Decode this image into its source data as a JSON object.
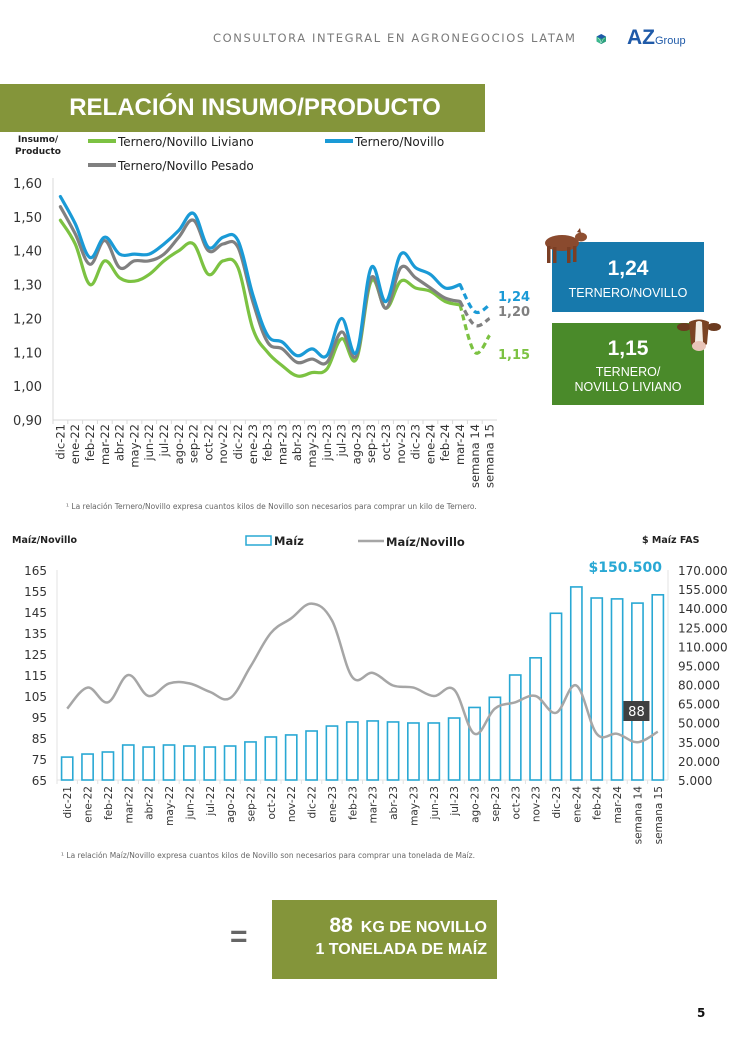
{
  "header": {
    "tagline": "CONSULTORA INTEGRAL EN AGRONEGOCIOS LATAM",
    "logo_main": "AZ",
    "logo_sub": "Group",
    "logo_icon": "hexagon-leaf-logo-icon"
  },
  "title": "RELACIÓN INSUMO/PRODUCTO",
  "colors": {
    "title_banner": "#84953a",
    "ternero_novillo": "#1a9ad6",
    "ternero_novillo_pesado": "#808080",
    "ternero_novillo_liviano": "#7cc242",
    "callout_blue": "#1779ac",
    "callout_green": "#4a8a2a",
    "bar_outline": "#29a8d4",
    "maiz_line": "#a6a6a6",
    "price_label": "#29a8d4"
  },
  "callouts": {
    "ternero_novillo": {
      "value": "1,24",
      "label": "TERNERO/NOVILLO",
      "icon": "calf-icon"
    },
    "ternero_novillo_liviano": {
      "value": "1,15",
      "label_line1": "TERNERO/",
      "label_line2": "NOVILLO LIVIANO",
      "icon": "cow-head-icon"
    }
  },
  "summary": {
    "equals_sign": "=",
    "value": "88",
    "line1_text": "KG DE NOVILLO",
    "line2_text": "1 TONELADA DE MAÍZ"
  },
  "page_number": "5",
  "chart_data": [
    {
      "type": "line",
      "title": "RELACIÓN INSUMO/PRODUCTO",
      "ylabel": "Insumo/ Producto",
      "ylabel_line1": "Insumo/",
      "ylabel_line2": "Producto",
      "xlabel": "",
      "ylim": [
        0.9,
        1.6
      ],
      "yticks": [
        "1,60",
        "1,50",
        "1,40",
        "1,30",
        "1,20",
        "1,10",
        "1,00",
        "0,90"
      ],
      "ytick_values": [
        1.6,
        1.5,
        1.4,
        1.3,
        1.2,
        1.1,
        1.0,
        0.9
      ],
      "grid": false,
      "legend_position": "top",
      "categories": [
        "dic-21",
        "ene-22",
        "feb-22",
        "mar-22",
        "abr-22",
        "may-22",
        "jun-22",
        "jul-22",
        "ago-22",
        "sep-22",
        "oct-22",
        "nov-22",
        "dic-22",
        "ene-23",
        "feb-23",
        "mar-23",
        "abr-23",
        "may-23",
        "jun-23",
        "jul-23",
        "ago-23",
        "sep-23",
        "oct-23",
        "nov-23",
        "dic-23",
        "ene-24",
        "feb-24",
        "mar-24",
        "semana 14",
        "semana 15"
      ],
      "dashed_from_index": 27,
      "series": [
        {
          "name": "Ternero/Novillo Liviano",
          "color_key": "ternero_novillo_liviano",
          "values": [
            1.49,
            1.42,
            1.3,
            1.37,
            1.32,
            1.31,
            1.33,
            1.37,
            1.4,
            1.42,
            1.33,
            1.37,
            1.35,
            1.17,
            1.1,
            1.06,
            1.03,
            1.04,
            1.05,
            1.14,
            1.08,
            1.31,
            1.23,
            1.31,
            1.29,
            1.28,
            1.25,
            1.24,
            1.1,
            1.15
          ],
          "end_label": "1,15"
        },
        {
          "name": "Ternero/Novillo",
          "color_key": "ternero_novillo",
          "values": [
            1.56,
            1.48,
            1.38,
            1.44,
            1.39,
            1.39,
            1.39,
            1.42,
            1.46,
            1.51,
            1.41,
            1.44,
            1.43,
            1.27,
            1.15,
            1.13,
            1.09,
            1.11,
            1.09,
            1.2,
            1.1,
            1.35,
            1.25,
            1.39,
            1.35,
            1.33,
            1.29,
            1.3,
            1.22,
            1.24
          ],
          "end_label": "1,24"
        },
        {
          "name": "Ternero/Novillo Pesado",
          "color_key": "ternero_novillo_pesado",
          "values": [
            1.53,
            1.45,
            1.36,
            1.43,
            1.35,
            1.37,
            1.37,
            1.39,
            1.44,
            1.49,
            1.4,
            1.42,
            1.41,
            1.25,
            1.13,
            1.11,
            1.07,
            1.08,
            1.07,
            1.16,
            1.09,
            1.32,
            1.23,
            1.35,
            1.32,
            1.29,
            1.26,
            1.25,
            1.18,
            1.2
          ],
          "end_label": "1,20"
        }
      ],
      "footnote": "¹ La relación Ternero/Novillo expresa cuantos kilos de Novillo son necesarios para comprar un kilo de Ternero."
    },
    {
      "type": "bar",
      "title": "",
      "ylabel": "Maíz/Novillo",
      "y2label": "$ Maíz FAS",
      "ylim": [
        65,
        165
      ],
      "y2lim": [
        5000,
        170000
      ],
      "yticks": [
        "165",
        "155",
        "145",
        "135",
        "125",
        "115",
        "105",
        "95",
        "85",
        "75",
        "65"
      ],
      "ytick_values": [
        165,
        155,
        145,
        135,
        125,
        115,
        105,
        95,
        85,
        75,
        65
      ],
      "y2ticks": [
        "170.000",
        "155.000",
        "140.000",
        "125.000",
        "110.000",
        "95.000",
        "80.000",
        "65.000",
        "50.000",
        "35.000",
        "20.000",
        "5.000"
      ],
      "y2tick_values": [
        170000,
        155000,
        140000,
        125000,
        110000,
        95000,
        80000,
        65000,
        50000,
        35000,
        20000,
        5000
      ],
      "grid": false,
      "legend_position": "top",
      "categories": [
        "dic-21",
        "ene-22",
        "feb-22",
        "mar-22",
        "abr-22",
        "may-22",
        "jun-22",
        "jul-22",
        "ago-22",
        "sep-22",
        "oct-22",
        "nov-22",
        "dic-22",
        "ene-23",
        "feb-23",
        "mar-23",
        "abr-23",
        "may-23",
        "jun-23",
        "jul-23",
        "ago-23",
        "sep-23",
        "oct-23",
        "nov-23",
        "dic-23",
        "ene-24",
        "feb-24",
        "mar-24",
        "semana 14",
        "semana 15"
      ],
      "series": [
        {
          "name": "Maíz",
          "kind": "bar",
          "axis": "right",
          "color_key": "bar_outline",
          "values": [
            23000,
            25400,
            27000,
            32500,
            30900,
            32500,
            31700,
            30900,
            31700,
            34900,
            38800,
            40400,
            43500,
            47400,
            50600,
            51400,
            50600,
            49800,
            49800,
            53700,
            62000,
            70000,
            87500,
            101000,
            136000,
            156700,
            148000,
            147300,
            144000,
            150500
          ]
        },
        {
          "name": "Maíz/Novillo",
          "kind": "line",
          "axis": "left",
          "color_key": "maiz_line",
          "values": [
            99,
            109,
            102,
            115,
            105,
            111,
            111,
            107,
            104,
            119,
            135,
            142,
            149,
            141,
            114,
            116,
            110,
            109,
            105,
            108,
            87,
            99,
            102,
            105,
            97,
            110,
            87,
            87,
            83,
            88
          ]
        }
      ],
      "annotations": {
        "last_price": "$150.500",
        "last_ratio": "88"
      },
      "footnote": "¹ La relación Maíz/Novillo expresa cuantos kilos de Novillo son necesarios para comprar una tonelada de Maíz."
    }
  ]
}
